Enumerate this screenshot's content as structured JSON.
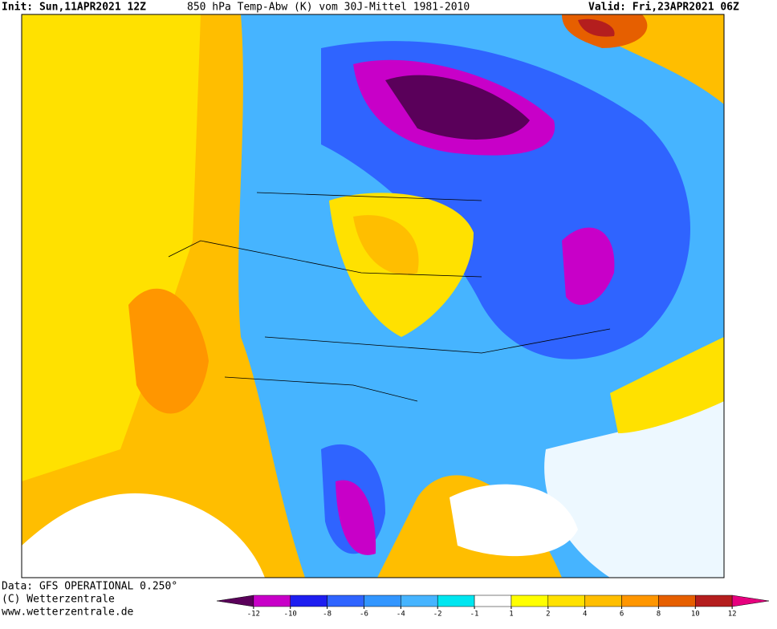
{
  "header": {
    "init": "Init: Sun,11APR2021 12Z",
    "title": "850 hPa Temp-Abw (K) vom 30J-Mittel 1981-2010",
    "valid": "Valid: Fri,23APR2021 06Z"
  },
  "footer": {
    "data": "Data: GFS OPERATIONAL 0.250°",
    "copyright": "(C) Wetterzentrale",
    "url": "www.wetterzentrale.de"
  },
  "colorbar": {
    "ticks": [
      -12,
      -10,
      -8,
      -6,
      -4,
      -2,
      -1,
      1,
      2,
      4,
      6,
      8,
      10,
      12
    ],
    "colors": [
      "#5a005a",
      "#c800c8",
      "#1e1ef0",
      "#2f64ff",
      "#3296ff",
      "#46b4ff",
      "#00e6f0",
      "#ffffff",
      "#ffff00",
      "#ffe100",
      "#ffbe00",
      "#ff9600",
      "#e65f00",
      "#b41e1e",
      "#e6007e"
    ]
  }
}
